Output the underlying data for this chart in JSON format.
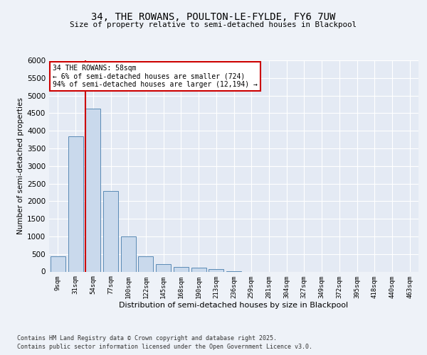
{
  "title1": "34, THE ROWANS, POULTON-LE-FYLDE, FY6 7UW",
  "title2": "Size of property relative to semi-detached houses in Blackpool",
  "xlabel": "Distribution of semi-detached houses by size in Blackpool",
  "ylabel": "Number of semi-detached properties",
  "categories": [
    "9sqm",
    "31sqm",
    "54sqm",
    "77sqm",
    "100sqm",
    "122sqm",
    "145sqm",
    "168sqm",
    "190sqm",
    "213sqm",
    "236sqm",
    "259sqm",
    "281sqm",
    "304sqm",
    "327sqm",
    "349sqm",
    "372sqm",
    "395sqm",
    "418sqm",
    "440sqm",
    "463sqm"
  ],
  "values": [
    430,
    3850,
    4620,
    2280,
    1000,
    430,
    220,
    130,
    110,
    80,
    10,
    0,
    0,
    0,
    0,
    0,
    0,
    0,
    0,
    0,
    0
  ],
  "bar_color": "#c9d9ec",
  "bar_edge_color": "#5a8ab5",
  "vline_color": "#cc0000",
  "annotation_title": "34 THE ROWANS: 58sqm",
  "annotation_line1": "← 6% of semi-detached houses are smaller (724)",
  "annotation_line2": "94% of semi-detached houses are larger (12,194) →",
  "annotation_box_facecolor": "#ffffff",
  "annotation_box_edgecolor": "#cc0000",
  "ylim": [
    0,
    6000
  ],
  "yticks": [
    0,
    500,
    1000,
    1500,
    2000,
    2500,
    3000,
    3500,
    4000,
    4500,
    5000,
    5500,
    6000
  ],
  "bg_color": "#eef2f8",
  "plot_bg_color": "#e4eaf4",
  "grid_color": "#ffffff",
  "footnote1": "Contains HM Land Registry data © Crown copyright and database right 2025.",
  "footnote2": "Contains public sector information licensed under the Open Government Licence v3.0."
}
